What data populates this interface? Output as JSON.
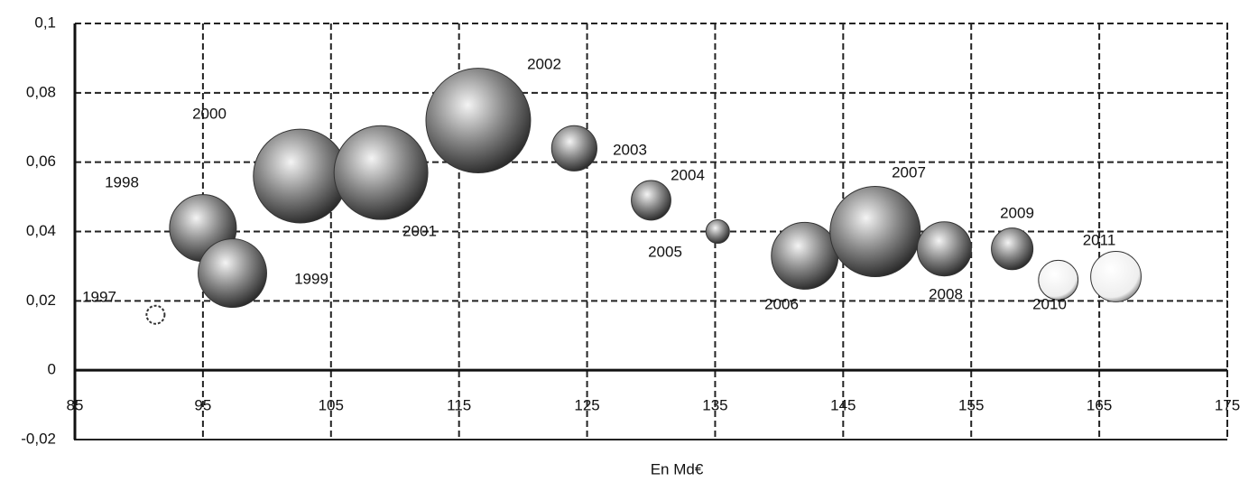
{
  "chart_data": {
    "type": "bubble",
    "x_label": "En Md€",
    "labels": [
      "1997",
      "1998",
      "1999",
      "2000",
      "2001",
      "2002",
      "2003",
      "2004",
      "2005",
      "2006",
      "2007",
      "2008",
      "2009",
      "2010",
      "2011"
    ],
    "x": [
      91.3,
      95.0,
      97.3,
      102.6,
      108.9,
      116.5,
      124.0,
      130.0,
      135.2,
      142.0,
      147.5,
      152.9,
      158.2,
      161.8,
      166.3
    ],
    "y": [
      0.016,
      0.041,
      0.028,
      0.056,
      0.057,
      0.072,
      0.064,
      0.049,
      0.04,
      0.033,
      0.04,
      0.035,
      0.035,
      0.026,
      0.027
    ],
    "sizes": [
      1.0,
      13.7,
      14.4,
      27,
      27,
      33.6,
      6.3,
      4.8,
      1.7,
      13.7,
      25,
      9,
      5.3,
      4.8,
      7.8
    ],
    "color": "#333333",
    "xlim": [
      85,
      175
    ],
    "xticks": [
      85,
      95,
      105,
      115,
      125,
      135,
      145,
      155,
      165,
      175
    ],
    "ylim": [
      -0.02,
      0.1
    ],
    "yticks": [
      {
        "value": -0.02,
        "label": "-0,02"
      },
      0,
      {
        "value": 0.02,
        "label": "0,02"
      },
      {
        "value": 0.04,
        "label": "0,04"
      },
      {
        "value": 0.06,
        "label": "0,06"
      },
      {
        "value": 0.08,
        "label": "0,08"
      },
      {
        "value": 0.1,
        "label": "0,1"
      }
    ],
    "grid": true
  }
}
